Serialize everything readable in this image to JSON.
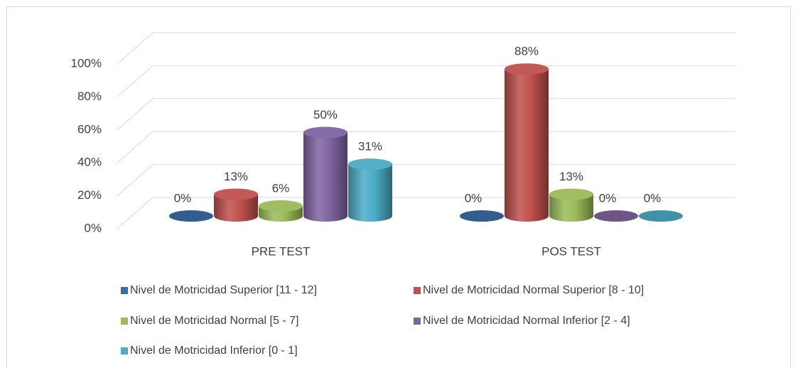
{
  "chart_data": {
    "type": "bar3d",
    "categories": [
      "PRE TEST",
      "POS TEST"
    ],
    "series": [
      {
        "name": "Nivel de Motricidad Superior [11 - 12]",
        "color": "#3a6ea5",
        "values": [
          0,
          0
        ],
        "value_labels": [
          "0%",
          "0%"
        ]
      },
      {
        "name": "Nivel de Motricidad Normal Superior [8 - 10]",
        "color": "#c0504d",
        "values": [
          13,
          88
        ],
        "value_labels": [
          "13%",
          "88%"
        ]
      },
      {
        "name": "Nivel de Motricidad Normal [5 - 7]",
        "color": "#9bbb59",
        "values": [
          6,
          13
        ],
        "value_labels": [
          "6%",
          "13%"
        ]
      },
      {
        "name": "Nivel de Motricidad Normal Inferior [2 - 4]",
        "color": "#8064a2",
        "values": [
          50,
          0
        ],
        "value_labels": [
          "50%",
          "0%"
        ]
      },
      {
        "name": "Nivel de Motricidad Inferior [0 - 1]",
        "color": "#4bacc6",
        "values": [
          31,
          0
        ],
        "value_labels": [
          "31%",
          "0%"
        ]
      }
    ],
    "ylim": [
      0,
      100
    ],
    "yticks": [
      {
        "value": 0,
        "label": "0%"
      },
      {
        "value": 20,
        "label": "20%"
      },
      {
        "value": 40,
        "label": "40%"
      },
      {
        "value": 60,
        "label": "60%"
      },
      {
        "value": 80,
        "label": "80%"
      },
      {
        "value": 100,
        "label": "100%"
      }
    ],
    "grid": true,
    "legend": "bottom"
  }
}
